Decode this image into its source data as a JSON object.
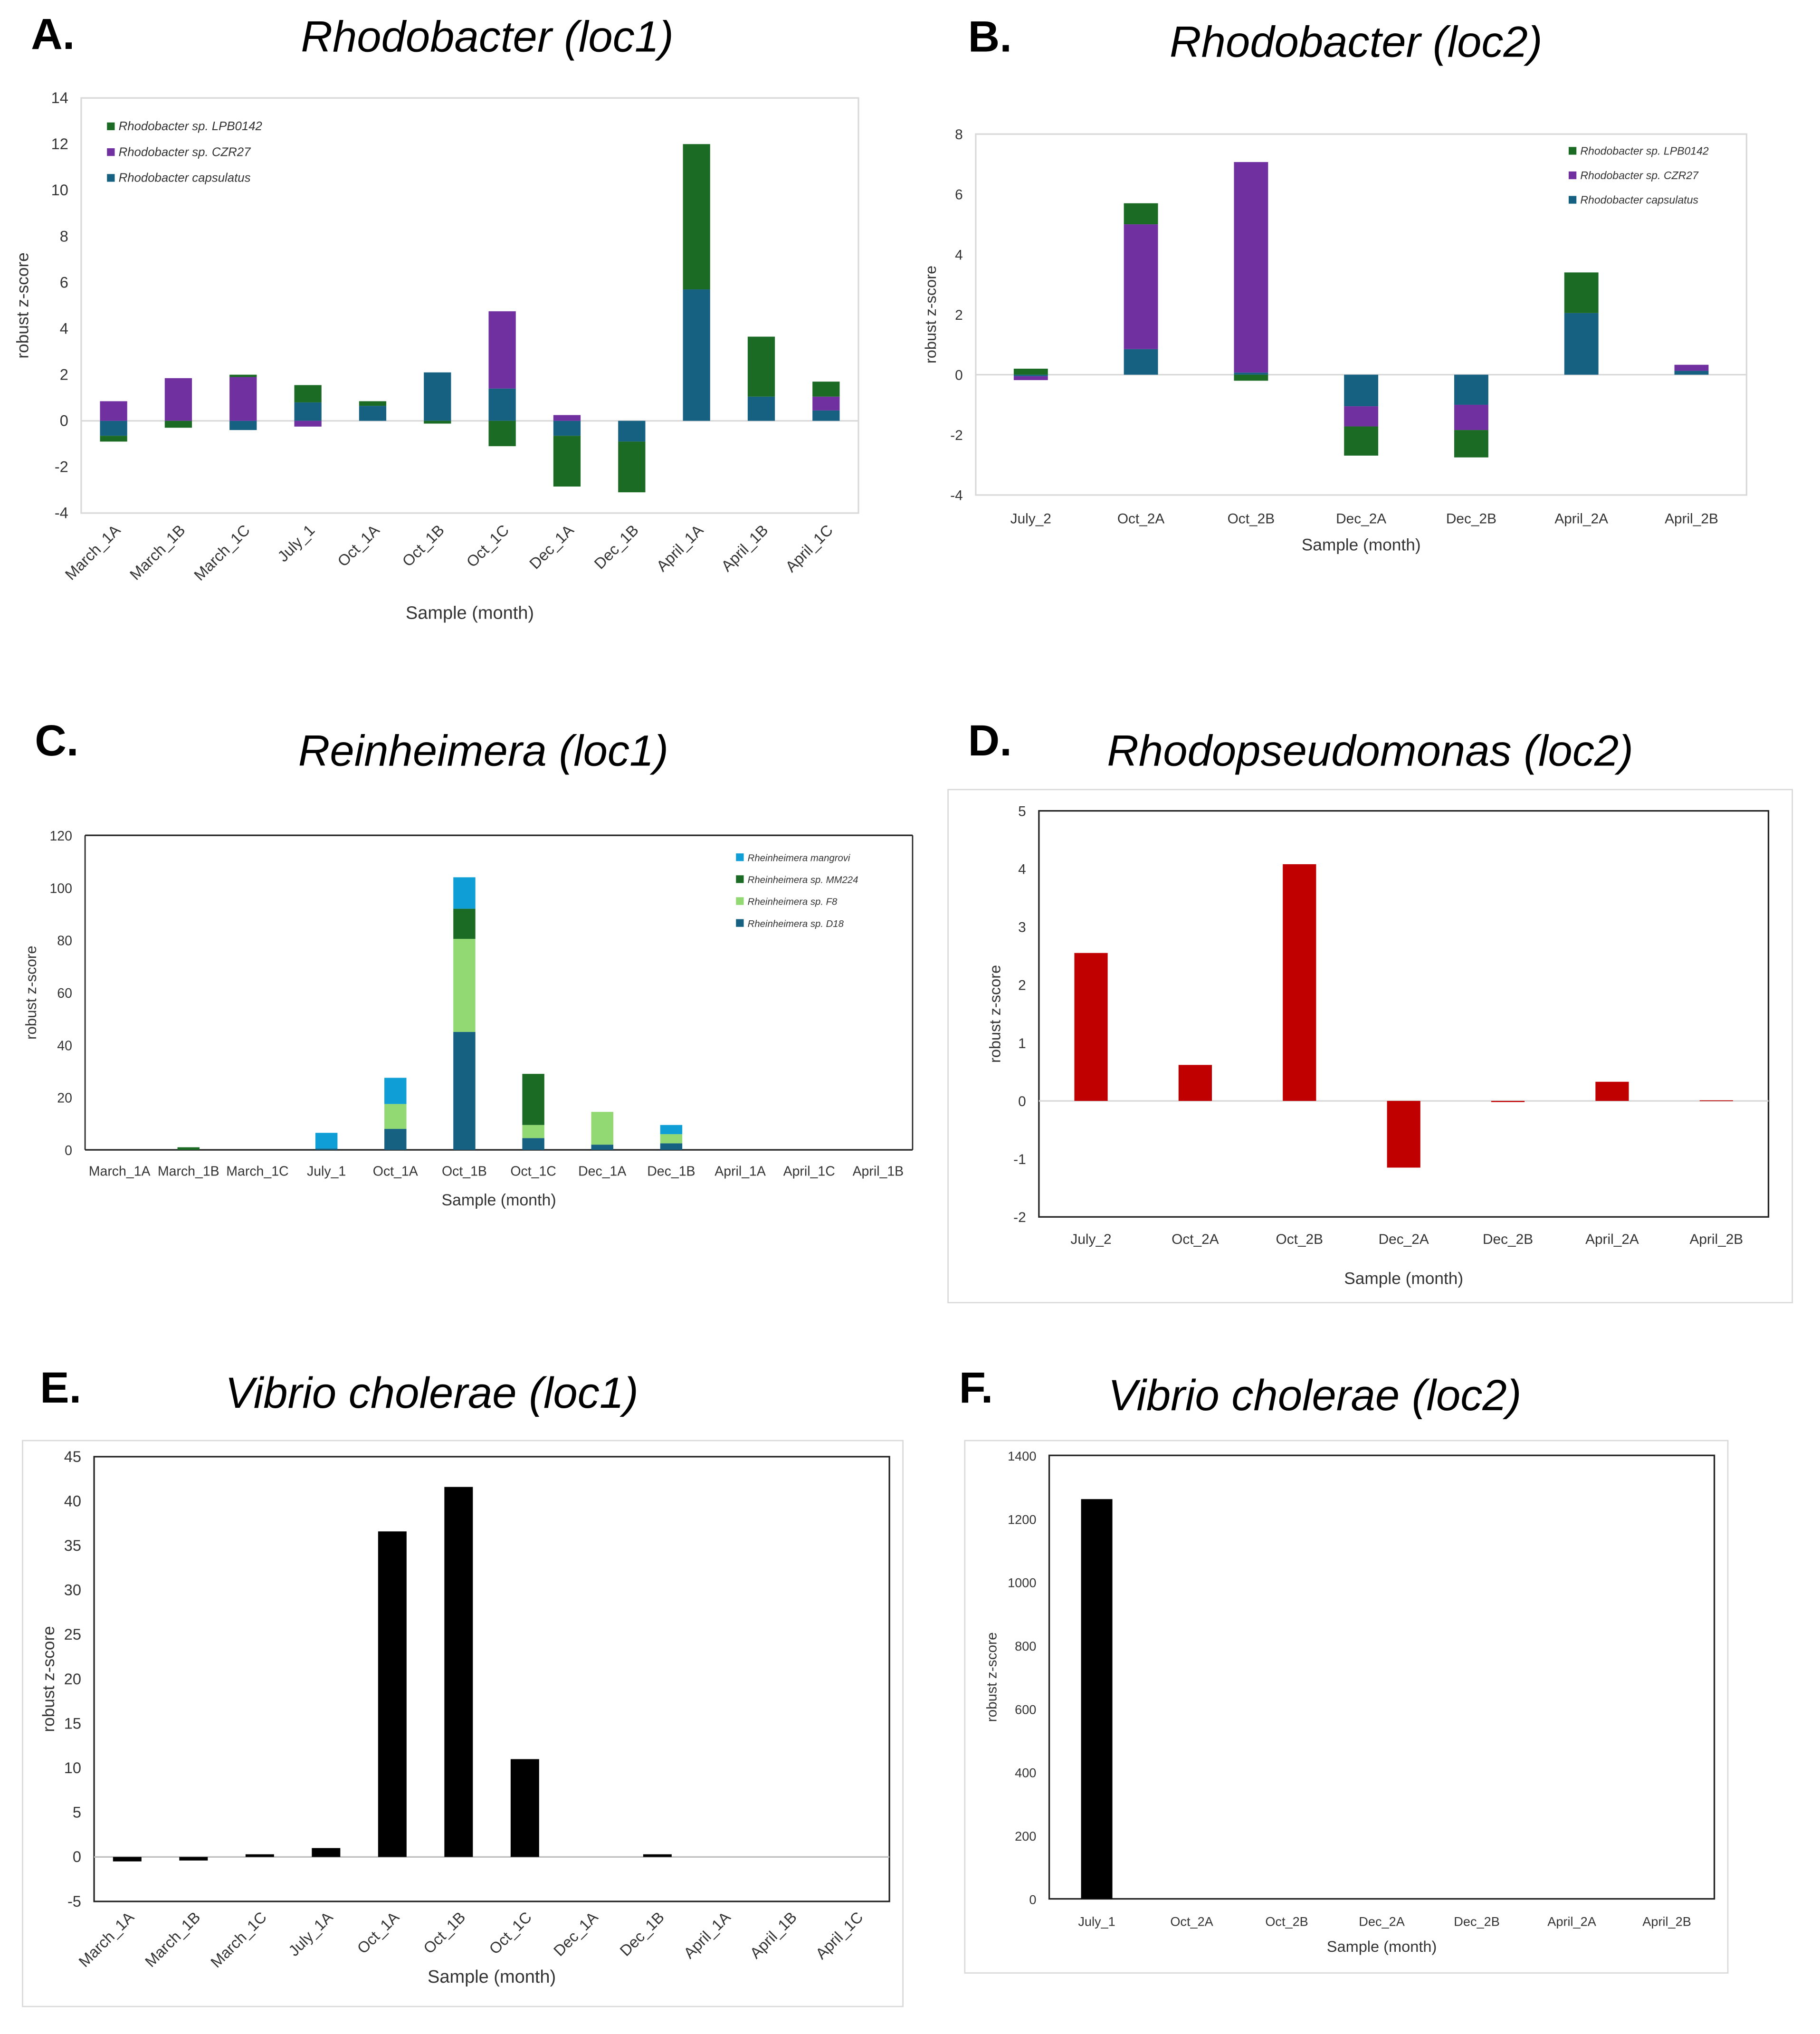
{
  "panels": [
    {
      "letter": "A.",
      "title": "Rhodobacter (loc1)"
    },
    {
      "letter": "B.",
      "title": "Rhodobacter (loc2)"
    },
    {
      "letter": "C.",
      "title": "Reinheimera (loc1)"
    },
    {
      "letter": "D.",
      "title": "Rhodopseudomonas (loc2)"
    },
    {
      "letter": "E.",
      "title": "Vibrio cholerae (loc1)"
    },
    {
      "letter": "F.",
      "title": "Vibrio cholerae (loc2)"
    }
  ],
  "chart_data": [
    {
      "type": "bar",
      "stacked": true,
      "title": "Rhodobacter (loc1)",
      "xlabel": "Sample (month)",
      "ylabel": "robust z-score",
      "ylim": [
        -4,
        14
      ],
      "ystep": 2,
      "legend": "top-left",
      "categories": [
        "March_1A",
        "March_1B",
        "March_1C",
        "July_1",
        "Oct_1A",
        "Oct_1B",
        "Oct_1C",
        "Dec_1A",
        "Dec_1B",
        "April_1A",
        "April_1B",
        "April_1C"
      ],
      "series": [
        {
          "name": "Rhodobacter capsulatus",
          "color": "#166082",
          "values": [
            -0.65,
            0,
            -0.4,
            0.8,
            0.65,
            2.1,
            1.4,
            -0.65,
            -0.9,
            5.7,
            1.05,
            0.45
          ]
        },
        {
          "name": "Rhodobacter sp. CZR27",
          "color": "#7030a0",
          "values": [
            0.85,
            1.85,
            1.9,
            -0.25,
            0,
            0,
            3.35,
            0.25,
            0,
            0,
            0,
            0.6
          ]
        },
        {
          "name": "Rhodobacter sp. LPB0142",
          "color": "#1b6b24",
          "values": [
            -0.25,
            -0.3,
            0.1,
            0.75,
            0.2,
            -0.12,
            -1.1,
            -2.2,
            -2.2,
            6.3,
            2.6,
            0.65
          ]
        }
      ]
    },
    {
      "type": "bar",
      "stacked": true,
      "title": "Rhodobacter (loc2)",
      "xlabel": "Sample (month)",
      "ylabel": "robust z-score",
      "ylim": [
        -4,
        8
      ],
      "ystep": 2,
      "legend": "top-right",
      "categories": [
        "July_2",
        "Oct_2A",
        "Oct_2B",
        "Dec_2A",
        "Dec_2B",
        "April_2A",
        "April_2B"
      ],
      "series": [
        {
          "name": "Rhodobacter capsulatus",
          "color": "#166082",
          "values": [
            -0.05,
            0.85,
            0.07,
            -1.05,
            -1.0,
            2.05,
            0.13
          ]
        },
        {
          "name": "Rhodobacter sp. CZR27",
          "color": "#7030a0",
          "values": [
            -0.13,
            4.15,
            7.0,
            -0.67,
            -0.84,
            0,
            0.2
          ]
        },
        {
          "name": "Rhodobacter sp. LPB0142",
          "color": "#1b6b24",
          "values": [
            0.2,
            0.7,
            -0.2,
            -0.97,
            -0.91,
            1.35,
            0
          ]
        }
      ]
    },
    {
      "type": "bar",
      "stacked": true,
      "title": "Reinheimera (loc1)",
      "xlabel": "Sample (month)",
      "ylabel": "robust z-score",
      "ylim": [
        0,
        120
      ],
      "ystep": 20,
      "legend": "top-right",
      "categories": [
        "March_1A",
        "March_1B",
        "March_1C",
        "July_1",
        "Oct_1A",
        "Oct_1B",
        "Oct_1C",
        "Dec_1A",
        "Dec_1B",
        "April_1A",
        "April_1C",
        "April_1B"
      ],
      "series": [
        {
          "name": "Rheinheimera sp. D18",
          "color": "#166082",
          "values": [
            0,
            0,
            0,
            0.5,
            8,
            45,
            4.5,
            2,
            2.5,
            0,
            0,
            0
          ]
        },
        {
          "name": "Rheinheimera sp. F8",
          "color": "#92d873",
          "values": [
            0,
            0,
            0,
            0,
            9.5,
            35.5,
            5,
            12.5,
            3.5,
            0,
            0,
            0
          ]
        },
        {
          "name": "Rheinheimera sp. MM224",
          "color": "#1b6b24",
          "values": [
            0,
            1,
            0,
            0,
            0,
            11.5,
            19.5,
            0,
            0,
            0,
            0,
            0
          ]
        },
        {
          "name": "Rheinheimera mangrovi",
          "color": "#0f9fd6",
          "values": [
            0,
            0,
            0,
            6,
            10,
            12,
            0,
            0,
            3.5,
            0,
            0,
            0
          ]
        }
      ]
    },
    {
      "type": "bar",
      "stacked": false,
      "title": "Rhodopseudomonas (loc2)",
      "xlabel": "Sample (month)",
      "ylabel": "robust z-score",
      "ylim": [
        -2,
        5
      ],
      "ystep": 1,
      "categories": [
        "July_2",
        "Oct_2A",
        "Oct_2B",
        "Dec_2A",
        "Dec_2B",
        "April_2A",
        "April_2B"
      ],
      "series": [
        {
          "name": "Rhodopseudomonas",
          "color": "#c00000",
          "values": [
            2.55,
            0.62,
            4.08,
            -1.15,
            -0.02,
            0.33,
            0.01
          ]
        }
      ]
    },
    {
      "type": "bar",
      "stacked": false,
      "title": "Vibrio cholerae (loc1)",
      "xlabel": "Sample (month)",
      "ylabel": "robust z-score",
      "ylim": [
        -5,
        45
      ],
      "ystep": 5,
      "categories": [
        "March_1A",
        "March_1B",
        "March_1C",
        "July_1A",
        "Oct_1A",
        "Oct_1B",
        "Oct_1C",
        "Dec_1A",
        "Dec_1B",
        "April_1A",
        "April_1B",
        "April_1C"
      ],
      "series": [
        {
          "name": "Vibrio cholerae",
          "color": "#000000",
          "values": [
            -0.5,
            -0.4,
            0.3,
            1.0,
            36.6,
            41.6,
            11.0,
            0,
            0.3,
            0,
            0,
            0
          ]
        }
      ]
    },
    {
      "type": "bar",
      "stacked": false,
      "title": "Vibrio cholerae (loc2)",
      "xlabel": "Sample (month)",
      "ylabel": "robust z-score",
      "ylim": [
        0,
        1400
      ],
      "ystep": 200,
      "categories": [
        "July_1",
        "Oct_2A",
        "Oct_2B",
        "Dec_2A",
        "Dec_2B",
        "April_2A",
        "April_2B"
      ],
      "series": [
        {
          "name": "Vibrio cholerae",
          "color": "#000000",
          "values": [
            1262,
            0,
            0,
            0,
            0,
            0,
            0
          ]
        }
      ]
    }
  ]
}
